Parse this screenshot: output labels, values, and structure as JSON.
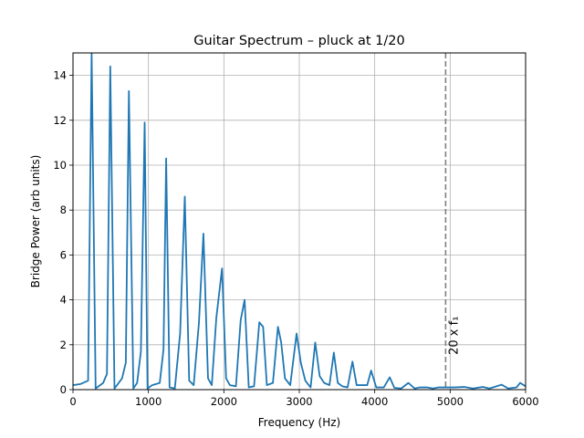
{
  "chart_data": {
    "type": "line",
    "title": "Guitar Spectrum – pluck at 1/20",
    "xlabel": "Frequency (Hz)",
    "ylabel": "Bridge Power (arb units)",
    "xlim": [
      0,
      6000
    ],
    "ylim": [
      0,
      15
    ],
    "x_ticks": [
      0,
      1000,
      2000,
      3000,
      4000,
      5000,
      6000
    ],
    "y_ticks": [
      0,
      2,
      4,
      6,
      8,
      10,
      12,
      14
    ],
    "grid": true,
    "line_color": "#1f77b4",
    "annotation": {
      "label": "20 x f₁",
      "x": 4940,
      "style": "dashed vertical line",
      "color": "#808080"
    },
    "series": [
      {
        "x": [
          0,
          100,
          200,
          247,
          300,
          400,
          450,
          494,
          550,
          650,
          700,
          741,
          800,
          850,
          900,
          950,
          988,
          1050,
          1150,
          1200,
          1235,
          1280,
          1350,
          1420,
          1482,
          1540,
          1600,
          1670,
          1729,
          1790,
          1840,
          1900,
          1976,
          2030,
          2080,
          2160,
          2223,
          2275,
          2330,
          2400,
          2470,
          2520,
          2570,
          2650,
          2717,
          2760,
          2810,
          2880,
          2964,
          3020,
          3080,
          3150,
          3211,
          3270,
          3330,
          3400,
          3458,
          3510,
          3570,
          3640,
          3705,
          3760,
          3840,
          3900,
          3952,
          4020,
          4120,
          4199,
          4260,
          4350,
          4446,
          4530,
          4600,
          4693,
          4770,
          4850,
          4940,
          5050,
          5187,
          5300,
          5434,
          5520,
          5681,
          5770,
          5880,
          5928,
          6000
        ],
        "values": [
          0.2,
          0.25,
          0.4,
          15.0,
          0.05,
          0.3,
          0.7,
          14.4,
          0.05,
          0.5,
          1.2,
          13.3,
          0.05,
          0.3,
          1.7,
          11.9,
          0.05,
          0.2,
          0.3,
          1.8,
          10.3,
          0.1,
          0.05,
          2.5,
          8.6,
          0.4,
          0.2,
          3.0,
          6.95,
          0.5,
          0.2,
          3.2,
          5.4,
          0.5,
          0.2,
          0.15,
          3.1,
          4.0,
          0.1,
          0.15,
          3.0,
          2.8,
          0.2,
          0.3,
          2.8,
          2.1,
          0.5,
          0.2,
          2.5,
          1.2,
          0.4,
          0.1,
          2.1,
          0.6,
          0.3,
          0.2,
          1.65,
          0.3,
          0.15,
          0.1,
          1.25,
          0.2,
          0.2,
          0.2,
          0.85,
          0.1,
          0.1,
          0.55,
          0.08,
          0.05,
          0.3,
          0.05,
          0.1,
          0.1,
          0.05,
          0.1,
          0.1,
          0.1,
          0.12,
          0.05,
          0.12,
          0.05,
          0.22,
          0.05,
          0.1,
          0.3,
          0.15
        ]
      }
    ]
  }
}
